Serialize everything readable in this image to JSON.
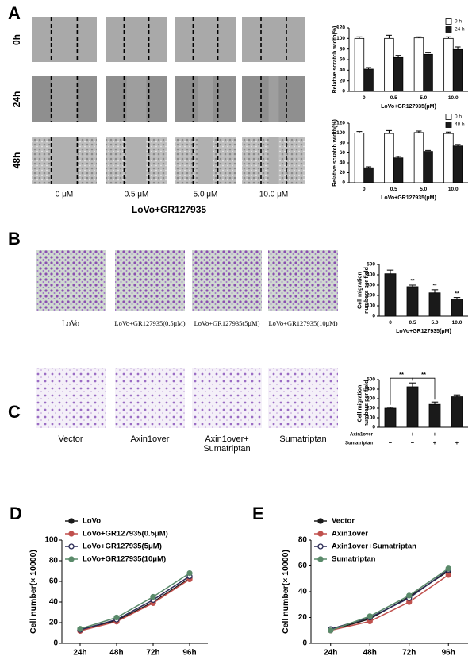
{
  "figure": {
    "A": {
      "label": "A",
      "rows": [
        "0h",
        "24h",
        "48h"
      ],
      "columns": [
        "0 μM",
        "0.5 μM",
        "5.0 μM",
        "10.0 μM"
      ],
      "caption": "LoVo+GR127935"
    },
    "B": {
      "label": "B",
      "images": [
        "LoVo",
        "LoVo+GR127935(0.5μM)",
        "LoVo+GR127935(5μM)",
        "LoVo+GR127935(10μM)"
      ]
    },
    "C": {
      "label": "C",
      "images": [
        [
          "Vector"
        ],
        [
          "Axin1over"
        ],
        [
          "Axin1over+",
          "Sumatriptan"
        ],
        [
          "Sumatriptan"
        ]
      ]
    },
    "D": {
      "label": "D"
    },
    "E": {
      "label": "E"
    }
  },
  "chart_data": [
    {
      "type": "bar",
      "categories": [
        "0",
        "0.5",
        "5.0",
        "10.0"
      ],
      "ylabel": "Relative scratch width(%)",
      "xlabel": "LoVo+GR127935(μM)",
      "series": [
        {
          "name": "0 h",
          "color": "#ffffff",
          "values": [
            100,
            100,
            101,
            100
          ],
          "errors": [
            3,
            6,
            2,
            3
          ]
        },
        {
          "name": "24 h",
          "color": "#1a1a1a",
          "values": [
            42,
            64,
            70,
            79
          ],
          "errors": [
            3,
            4,
            3,
            5
          ]
        }
      ],
      "ylim": [
        0,
        120
      ],
      "yticks": [
        0,
        20,
        40,
        60,
        80,
        100,
        120
      ],
      "legend": "upper right"
    },
    {
      "type": "bar",
      "categories": [
        "0",
        "0.5",
        "5.0",
        "10.0"
      ],
      "ylabel": "Relative scratch width(%)",
      "xlabel": "LoVo+GR127935(μM)",
      "series": [
        {
          "name": "0 h",
          "color": "#ffffff",
          "values": [
            100,
            99,
            101,
            99
          ],
          "errors": [
            3,
            6,
            3,
            3
          ]
        },
        {
          "name": "48 h",
          "color": "#1a1a1a",
          "values": [
            30,
            50,
            63,
            74
          ],
          "errors": [
            2,
            3,
            2,
            3
          ]
        }
      ],
      "ylim": [
        0,
        120
      ],
      "yticks": [
        0,
        20,
        40,
        60,
        80,
        100,
        120
      ],
      "legend": "upper right"
    },
    {
      "type": "bar",
      "categories": [
        "0",
        "0.5",
        "5.0",
        "10.0"
      ],
      "ylabel": [
        "Cell migration",
        "numbers per field"
      ],
      "xlabel": "LoVo+GR127935(μM)",
      "values": [
        410,
        285,
        225,
        165
      ],
      "errors": [
        35,
        15,
        30,
        15
      ],
      "color": "#1a1a1a",
      "value_annotations": [
        null,
        "**",
        "**",
        "**"
      ],
      "ylim": [
        0,
        500
      ],
      "yticks": [
        0,
        100,
        200,
        300,
        400,
        500
      ]
    },
    {
      "type": "bar",
      "categories": [
        null,
        null,
        null,
        null
      ],
      "ylabel": [
        "Cell migration",
        "numbers per field"
      ],
      "values": [
        200,
        425,
        240,
        320
      ],
      "errors": [
        10,
        40,
        25,
        20
      ],
      "color": "#1a1a1a",
      "conditions": [
        {
          "name": "Axin1over",
          "values": [
            "−",
            "+",
            "+",
            "−"
          ]
        },
        {
          "name": "Sumatriptan",
          "values": [
            "−",
            "−",
            "+",
            "+"
          ]
        }
      ],
      "brackets": [
        {
          "text": "**",
          "between": [
            0,
            1
          ]
        },
        {
          "text": "**",
          "between": [
            1,
            2
          ]
        }
      ],
      "ylim": [
        0,
        500
      ],
      "yticks": [
        0,
        100,
        200,
        300,
        400,
        500
      ]
    },
    {
      "type": "line",
      "categories": [
        "24h",
        "48h",
        "72h",
        "96h"
      ],
      "ylabel": "Cell number(× 10000)",
      "series": [
        {
          "name": "LoVo",
          "color": "#1a1a1a",
          "values": [
            13,
            22,
            40,
            63
          ]
        },
        {
          "name": "LoVo+GR127935(0.5μM)",
          "color": "#c0504d",
          "values": [
            12,
            21,
            39,
            62
          ]
        },
        {
          "name": "LoVo+GR127935(5μM)",
          "color": "#2b2b55",
          "values": [
            13,
            23,
            42,
            65
          ]
        },
        {
          "name": "LoVo+GR127935(10μM)",
          "color": "#5a8a6a",
          "values": [
            14,
            25,
            45,
            68
          ]
        }
      ],
      "ylim": [
        0,
        100
      ],
      "yticks": [
        0,
        20,
        40,
        60,
        80,
        100
      ],
      "legend": "upper left"
    },
    {
      "type": "line",
      "categories": [
        "24h",
        "48h",
        "72h",
        "96h"
      ],
      "ylabel": "Cell number(× 10000)",
      "series": [
        {
          "name": "Vector",
          "color": "#1a1a1a",
          "values": [
            10,
            19,
            36,
            56
          ]
        },
        {
          "name": "Axin1over",
          "color": "#c0504d",
          "values": [
            10,
            17,
            32,
            53
          ]
        },
        {
          "name": "Axin1over+Sumatriptan",
          "color": "#2b2b55",
          "values": [
            11,
            20,
            35,
            57
          ]
        },
        {
          "name": "Sumatriptan",
          "color": "#5a8a6a",
          "values": [
            10,
            21,
            37,
            58
          ]
        }
      ],
      "ylim": [
        0,
        80
      ],
      "yticks": [
        0,
        20,
        40,
        60,
        80
      ],
      "legend": "upper left"
    }
  ]
}
